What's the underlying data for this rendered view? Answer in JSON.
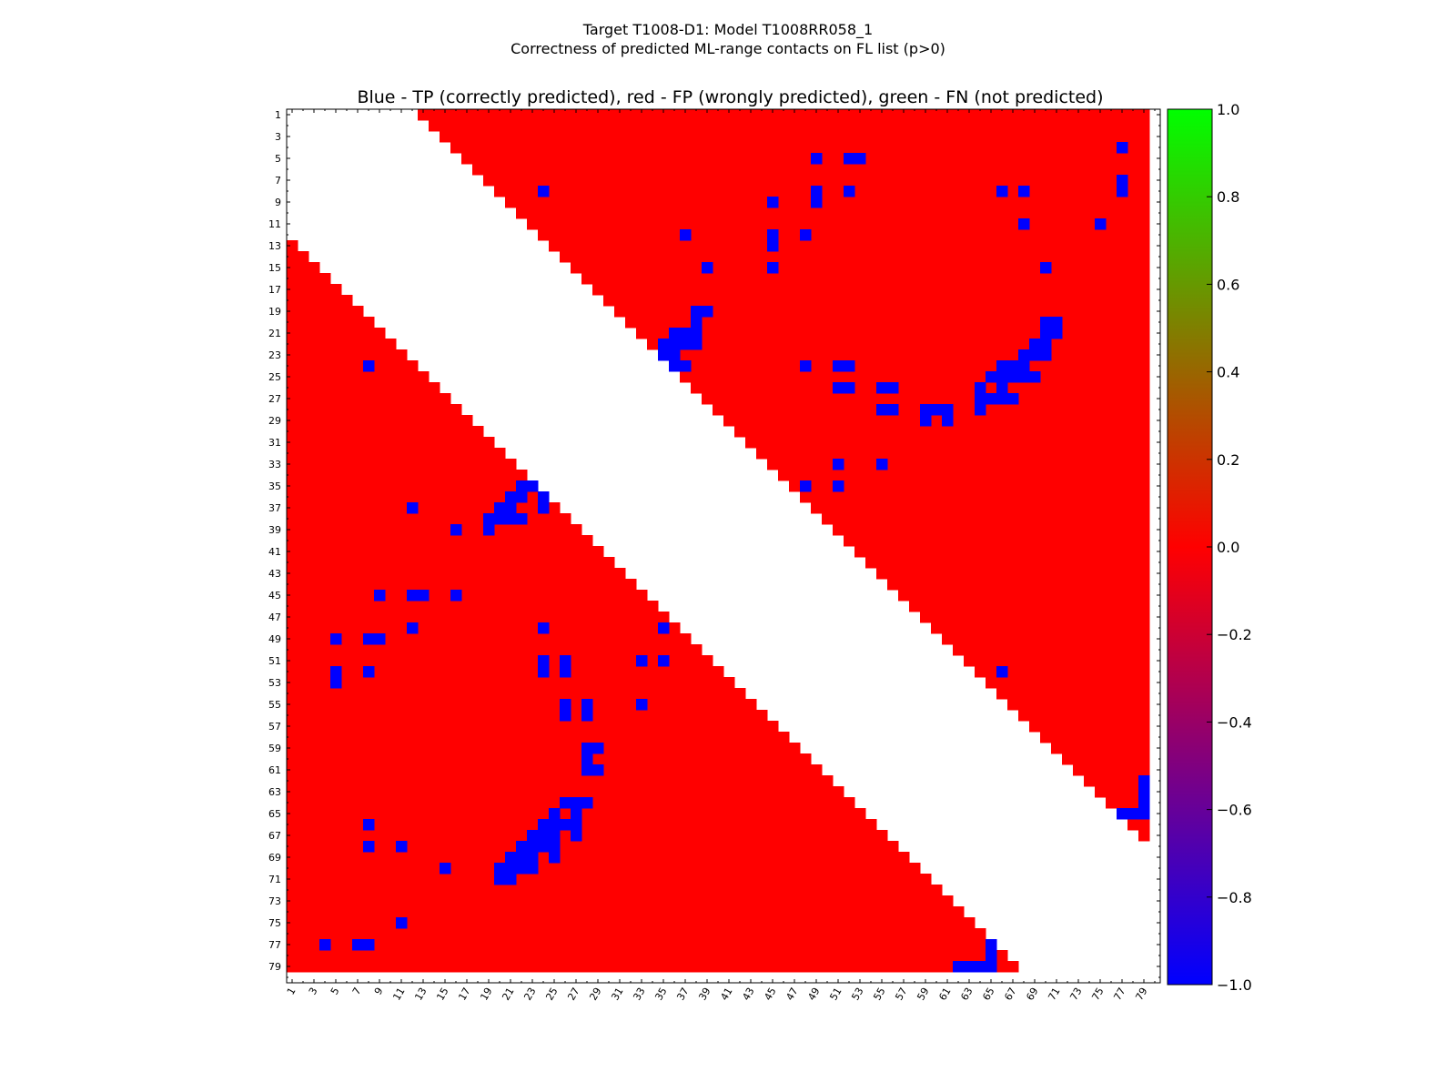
{
  "chart_data": {
    "type": "heatmap",
    "title_lines": [
      "Target T1008-D1: Model T1008RR058_1",
      "Correctness of predicted ML-range contacts on FL list (p>0)"
    ],
    "subtitle": "Blue - TP (correctly predicted), red - FP (wrongly predicted), green - FN (not predicted)",
    "n": 80,
    "tick_labels": [
      "1",
      "3",
      "5",
      "7",
      "9",
      "11",
      "13",
      "15",
      "17",
      "19",
      "21",
      "23",
      "25",
      "27",
      "29",
      "31",
      "33",
      "35",
      "37",
      "39",
      "41",
      "43",
      "45",
      "47",
      "49",
      "51",
      "53",
      "55",
      "57",
      "59",
      "61",
      "63",
      "65",
      "67",
      "69",
      "71",
      "73",
      "75",
      "77",
      "79"
    ],
    "red_regions": [
      {
        "region": "upper",
        "min_separation": 12,
        "max_residue": 79
      },
      {
        "region": "lower",
        "min_separation": 12,
        "max_residue": 79
      }
    ],
    "tp_cells_upper": [
      [
        4,
        77
      ],
      [
        5,
        49
      ],
      [
        5,
        52
      ],
      [
        5,
        53
      ],
      [
        8,
        24
      ],
      [
        8,
        49
      ],
      [
        8,
        52
      ],
      [
        8,
        66
      ],
      [
        8,
        68
      ],
      [
        8,
        77
      ],
      [
        7,
        77
      ],
      [
        9,
        45
      ],
      [
        9,
        49
      ],
      [
        11,
        68
      ],
      [
        11,
        75
      ],
      [
        12,
        37
      ],
      [
        12,
        45
      ],
      [
        12,
        48
      ],
      [
        13,
        45
      ],
      [
        15,
        39
      ],
      [
        15,
        45
      ],
      [
        15,
        70
      ],
      [
        19,
        38
      ],
      [
        19,
        39
      ],
      [
        20,
        38
      ],
      [
        21,
        36
      ],
      [
        21,
        37
      ],
      [
        21,
        38
      ],
      [
        21,
        70
      ],
      [
        21,
        71
      ],
      [
        20,
        70
      ],
      [
        20,
        71
      ],
      [
        22,
        35
      ],
      [
        22,
        36
      ],
      [
        22,
        37
      ],
      [
        22,
        38
      ],
      [
        22,
        69
      ],
      [
        22,
        70
      ],
      [
        23,
        35
      ],
      [
        23,
        36
      ],
      [
        23,
        68
      ],
      [
        23,
        69
      ],
      [
        23,
        70
      ],
      [
        24,
        36
      ],
      [
        24,
        37
      ],
      [
        24,
        48
      ],
      [
        24,
        51
      ],
      [
        24,
        52
      ],
      [
        24,
        66
      ],
      [
        24,
        67
      ],
      [
        24,
        68
      ],
      [
        25,
        65
      ],
      [
        25,
        66
      ],
      [
        25,
        67
      ],
      [
        25,
        68
      ],
      [
        25,
        69
      ],
      [
        26,
        51
      ],
      [
        26,
        52
      ],
      [
        26,
        55
      ],
      [
        26,
        56
      ],
      [
        26,
        64
      ],
      [
        26,
        66
      ],
      [
        27,
        64
      ],
      [
        27,
        65
      ],
      [
        27,
        66
      ],
      [
        27,
        67
      ],
      [
        28,
        55
      ],
      [
        28,
        56
      ],
      [
        28,
        59
      ],
      [
        28,
        60
      ],
      [
        28,
        61
      ],
      [
        28,
        64
      ],
      [
        29,
        59
      ],
      [
        29,
        61
      ],
      [
        33,
        51
      ],
      [
        33,
        55
      ],
      [
        35,
        48
      ],
      [
        35,
        51
      ],
      [
        52,
        66
      ],
      [
        62,
        79
      ],
      [
        63,
        79
      ],
      [
        64,
        79
      ],
      [
        65,
        77
      ],
      [
        65,
        78
      ],
      [
        65,
        79
      ]
    ],
    "tp_cells_lower": [
      [
        24,
        8
      ],
      [
        35,
        22
      ],
      [
        35,
        23
      ],
      [
        36,
        21
      ],
      [
        36,
        22
      ],
      [
        36,
        24
      ],
      [
        37,
        12
      ],
      [
        37,
        20
      ],
      [
        37,
        21
      ],
      [
        37,
        24
      ],
      [
        38,
        19
      ],
      [
        38,
        20
      ],
      [
        38,
        21
      ],
      [
        38,
        22
      ],
      [
        39,
        16
      ],
      [
        39,
        19
      ],
      [
        45,
        9
      ],
      [
        45,
        12
      ],
      [
        45,
        13
      ],
      [
        45,
        16
      ],
      [
        48,
        12
      ],
      [
        48,
        24
      ],
      [
        48,
        35
      ],
      [
        49,
        5
      ],
      [
        49,
        8
      ],
      [
        49,
        9
      ],
      [
        51,
        24
      ],
      [
        51,
        26
      ],
      [
        51,
        33
      ],
      [
        51,
        35
      ],
      [
        52,
        5
      ],
      [
        52,
        8
      ],
      [
        52,
        24
      ],
      [
        52,
        26
      ],
      [
        53,
        5
      ],
      [
        55,
        26
      ],
      [
        55,
        28
      ],
      [
        55,
        33
      ],
      [
        56,
        26
      ],
      [
        56,
        28
      ],
      [
        59,
        28
      ],
      [
        59,
        29
      ],
      [
        60,
        28
      ],
      [
        61,
        28
      ],
      [
        61,
        29
      ],
      [
        64,
        26
      ],
      [
        64,
        27
      ],
      [
        64,
        28
      ],
      [
        65,
        25
      ],
      [
        65,
        27
      ],
      [
        66,
        8
      ],
      [
        66,
        24
      ],
      [
        66,
        25
      ],
      [
        66,
        26
      ],
      [
        66,
        27
      ],
      [
        67,
        23
      ],
      [
        67,
        24
      ],
      [
        67,
        25
      ],
      [
        67,
        27
      ],
      [
        68,
        8
      ],
      [
        68,
        11
      ],
      [
        68,
        22
      ],
      [
        68,
        23
      ],
      [
        68,
        24
      ],
      [
        68,
        25
      ],
      [
        69,
        21
      ],
      [
        69,
        22
      ],
      [
        69,
        23
      ],
      [
        69,
        25
      ],
      [
        70,
        15
      ],
      [
        70,
        20
      ],
      [
        70,
        21
      ],
      [
        70,
        22
      ],
      [
        70,
        23
      ],
      [
        71,
        20
      ],
      [
        71,
        21
      ],
      [
        75,
        11
      ],
      [
        77,
        4
      ],
      [
        77,
        7
      ],
      [
        77,
        8
      ],
      [
        77,
        65
      ],
      [
        78,
        65
      ],
      [
        79,
        62
      ],
      [
        79,
        63
      ],
      [
        79,
        64
      ],
      [
        79,
        65
      ]
    ],
    "fn_cells": [],
    "colors": {
      "TP": "#0000ff",
      "FP": "#ff0000",
      "FN": "#00ff00"
    },
    "colorbar": {
      "range": [
        -1.0,
        1.0
      ],
      "tick_labels": [
        "1.0",
        "0.8",
        "0.6",
        "0.4",
        "0.2",
        "0.0",
        "−0.2",
        "−0.4",
        "−0.6",
        "−0.8",
        "−1.0"
      ],
      "stops": [
        "#00ff00",
        "#ff0000",
        "#0000ff"
      ]
    },
    "grid": false
  }
}
